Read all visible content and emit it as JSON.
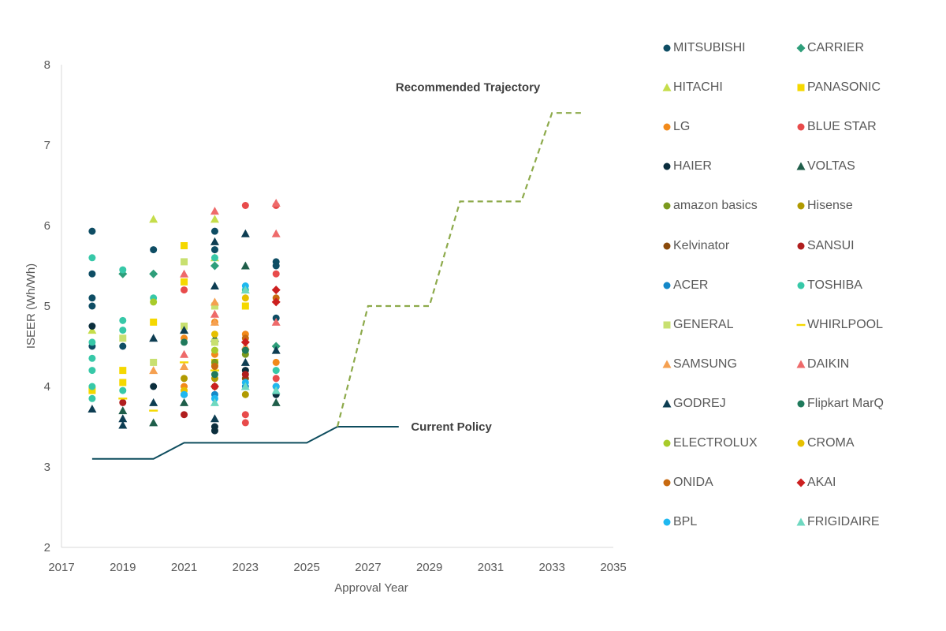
{
  "chart_data": {
    "type": "scatter",
    "title": "",
    "xlabel": "Approval Year",
    "ylabel": "ISEER (Wh/Wh)",
    "xlim": [
      2017,
      2035
    ],
    "ylim": [
      2,
      8
    ],
    "xticks": [
      "2017",
      "2019",
      "2021",
      "2023",
      "2025",
      "2027",
      "2029",
      "2031",
      "2033",
      "2035"
    ],
    "yticks": [
      "2",
      "3",
      "4",
      "5",
      "6",
      "7",
      "8"
    ],
    "grid": false,
    "legend_position": "right",
    "series": [
      {
        "name": "MITSUBISHI",
        "marker": "circle",
        "color": "#0E4D64",
        "points": [
          [
            2018,
            5.93
          ],
          [
            2018,
            5.4
          ],
          [
            2018,
            5.1
          ],
          [
            2018,
            5.0
          ],
          [
            2018,
            4.5
          ],
          [
            2019,
            4.5
          ],
          [
            2020,
            5.7
          ],
          [
            2022,
            5.93
          ],
          [
            2022,
            5.7
          ],
          [
            2024,
            5.55
          ],
          [
            2024,
            5.5
          ],
          [
            2024,
            4.85
          ]
        ]
      },
      {
        "name": "CARRIER",
        "marker": "diamond",
        "color": "#2E9E7A",
        "points": [
          [
            2019,
            5.4
          ],
          [
            2020,
            5.4
          ],
          [
            2022,
            5.5
          ],
          [
            2024,
            4.5
          ]
        ]
      },
      {
        "name": "HITACHI",
        "marker": "triangle",
        "color": "#C5DD4A",
        "points": [
          [
            2018,
            4.7
          ],
          [
            2020,
            6.08
          ],
          [
            2021,
            4.7
          ],
          [
            2022,
            6.08
          ],
          [
            2022,
            5.6
          ]
        ]
      },
      {
        "name": "PANASONIC",
        "marker": "square",
        "color": "#F5D800",
        "points": [
          [
            2018,
            3.95
          ],
          [
            2019,
            4.2
          ],
          [
            2019,
            4.05
          ],
          [
            2020,
            4.8
          ],
          [
            2021,
            5.75
          ],
          [
            2021,
            5.3
          ],
          [
            2022,
            4.3
          ],
          [
            2023,
            5.0
          ]
        ]
      },
      {
        "name": "LG",
        "marker": "circle",
        "color": "#F28A1A",
        "points": [
          [
            2021,
            4.6
          ],
          [
            2021,
            4.0
          ],
          [
            2022,
            4.8
          ],
          [
            2022,
            4.4
          ],
          [
            2023,
            4.65
          ],
          [
            2024,
            4.3
          ]
        ]
      },
      {
        "name": "BLUE STAR",
        "marker": "circle",
        "color": "#E84B4B",
        "points": [
          [
            2021,
            5.2
          ],
          [
            2023,
            6.25
          ],
          [
            2023,
            3.65
          ],
          [
            2023,
            3.55
          ],
          [
            2024,
            6.25
          ],
          [
            2024,
            5.4
          ],
          [
            2024,
            4.1
          ]
        ]
      },
      {
        "name": "HAIER",
        "marker": "circle",
        "color": "#0B2E3D",
        "points": [
          [
            2018,
            4.75
          ],
          [
            2020,
            4.0
          ],
          [
            2021,
            3.9
          ],
          [
            2022,
            3.45
          ],
          [
            2022,
            3.5
          ],
          [
            2023,
            4.2
          ],
          [
            2024,
            3.9
          ]
        ]
      },
      {
        "name": "VOLTAS",
        "marker": "triangle",
        "color": "#1F5E4A",
        "points": [
          [
            2019,
            3.7
          ],
          [
            2020,
            3.55
          ],
          [
            2021,
            3.8
          ],
          [
            2022,
            4.6
          ],
          [
            2023,
            5.5
          ],
          [
            2024,
            3.8
          ]
        ]
      },
      {
        "name": "amazon basics",
        "marker": "circle",
        "color": "#7B9A1E",
        "points": [
          [
            2022,
            4.3
          ],
          [
            2023,
            4.4
          ]
        ]
      },
      {
        "name": "Hisense",
        "marker": "circle",
        "color": "#B09A00",
        "points": [
          [
            2021,
            4.1
          ],
          [
            2022,
            4.1
          ],
          [
            2023,
            3.9
          ]
        ]
      },
      {
        "name": "Kelvinator",
        "marker": "circle",
        "color": "#8A4A0B",
        "points": [
          [
            2022,
            4.0
          ],
          [
            2023,
            4.1
          ]
        ]
      },
      {
        "name": "SANSUI",
        "marker": "circle",
        "color": "#B01E1E",
        "points": [
          [
            2019,
            3.8
          ],
          [
            2021,
            3.65
          ],
          [
            2023,
            4.15
          ],
          [
            2024,
            4.0
          ]
        ]
      },
      {
        "name": "ACER",
        "marker": "circle",
        "color": "#1488C8",
        "points": [
          [
            2022,
            3.9
          ],
          [
            2023,
            4.0
          ]
        ]
      },
      {
        "name": "TOSHIBA",
        "marker": "circle",
        "color": "#37C8A8",
        "points": [
          [
            2018,
            5.6
          ],
          [
            2018,
            4.55
          ],
          [
            2018,
            4.35
          ],
          [
            2018,
            4.2
          ],
          [
            2018,
            4.0
          ],
          [
            2018,
            3.85
          ],
          [
            2019,
            5.45
          ],
          [
            2019,
            4.82
          ],
          [
            2019,
            4.7
          ],
          [
            2019,
            3.95
          ],
          [
            2020,
            5.1
          ],
          [
            2022,
            5.6
          ],
          [
            2023,
            5.2
          ],
          [
            2024,
            4.2
          ]
        ]
      },
      {
        "name": "GENERAL",
        "marker": "square",
        "color": "#C8E070",
        "points": [
          [
            2019,
            4.6
          ],
          [
            2020,
            4.3
          ],
          [
            2021,
            5.55
          ],
          [
            2021,
            4.75
          ],
          [
            2022,
            5.0
          ],
          [
            2022,
            4.55
          ]
        ]
      },
      {
        "name": "WHIRLPOOL",
        "marker": "dash",
        "color": "#F5D800",
        "points": [
          [
            2019,
            3.85
          ],
          [
            2020,
            3.7
          ],
          [
            2021,
            4.3
          ],
          [
            2022,
            4.2
          ]
        ]
      },
      {
        "name": "SAMSUNG",
        "marker": "triangle",
        "color": "#F5A050",
        "points": [
          [
            2020,
            4.2
          ],
          [
            2021,
            4.25
          ],
          [
            2022,
            5.05
          ],
          [
            2022,
            4.8
          ],
          [
            2023,
            4.5
          ]
        ]
      },
      {
        "name": "DAIKIN",
        "marker": "triangle",
        "color": "#EE6A6A",
        "points": [
          [
            2021,
            5.4
          ],
          [
            2021,
            4.4
          ],
          [
            2022,
            6.18
          ],
          [
            2022,
            4.9
          ],
          [
            2024,
            6.28
          ],
          [
            2024,
            5.9
          ],
          [
            2024,
            4.8
          ]
        ]
      },
      {
        "name": "GODREJ",
        "marker": "triangle",
        "color": "#0D3D52",
        "points": [
          [
            2018,
            3.72
          ],
          [
            2019,
            3.6
          ],
          [
            2019,
            3.52
          ],
          [
            2020,
            3.8
          ],
          [
            2020,
            4.6
          ],
          [
            2021,
            4.7
          ],
          [
            2022,
            5.8
          ],
          [
            2022,
            5.25
          ],
          [
            2022,
            3.6
          ],
          [
            2023,
            5.9
          ],
          [
            2023,
            4.3
          ],
          [
            2024,
            4.45
          ]
        ]
      },
      {
        "name": "Flipkart MarQ",
        "marker": "circle",
        "color": "#1F7A5C",
        "points": [
          [
            2021,
            4.55
          ],
          [
            2022,
            4.15
          ],
          [
            2023,
            4.45
          ]
        ]
      },
      {
        "name": "ELECTROLUX",
        "marker": "circle",
        "color": "#A8CB2A",
        "points": [
          [
            2020,
            5.05
          ],
          [
            2022,
            4.45
          ]
        ]
      },
      {
        "name": "CROMA",
        "marker": "circle",
        "color": "#E6C000",
        "points": [
          [
            2021,
            3.95
          ],
          [
            2022,
            4.65
          ],
          [
            2023,
            5.1
          ]
        ]
      },
      {
        "name": "ONIDA",
        "marker": "circle",
        "color": "#C86A10",
        "points": [
          [
            2022,
            4.25
          ],
          [
            2023,
            4.6
          ],
          [
            2024,
            5.1
          ]
        ]
      },
      {
        "name": "AKAI",
        "marker": "diamond",
        "color": "#CC1F1F",
        "points": [
          [
            2022,
            4.0
          ],
          [
            2023,
            4.55
          ],
          [
            2024,
            5.2
          ],
          [
            2024,
            5.05
          ]
        ]
      },
      {
        "name": "BPL",
        "marker": "circle",
        "color": "#1EB8F0",
        "points": [
          [
            2021,
            3.9
          ],
          [
            2022,
            3.85
          ],
          [
            2023,
            5.25
          ],
          [
            2023,
            4.05
          ],
          [
            2024,
            4.0
          ]
        ]
      },
      {
        "name": "FRIGIDAIRE",
        "marker": "triangle",
        "color": "#6ED8C0",
        "points": [
          [
            2022,
            3.8
          ],
          [
            2023,
            5.2
          ],
          [
            2023,
            4.0
          ],
          [
            2024,
            3.95
          ]
        ]
      }
    ],
    "lines": [
      {
        "name": "Current Policy",
        "style": "solid",
        "color": "#0E4D5E",
        "points": [
          [
            2018,
            3.1
          ],
          [
            2020,
            3.1
          ],
          [
            2021,
            3.3
          ],
          [
            2025,
            3.3
          ],
          [
            2026,
            3.5
          ],
          [
            2028,
            3.5
          ]
        ]
      },
      {
        "name": "Recommended Trajectory",
        "style": "dashed",
        "color": "#8DAA4B",
        "points": [
          [
            2026,
            3.5
          ],
          [
            2027,
            5.0
          ],
          [
            2029,
            5.0
          ],
          [
            2030,
            6.3
          ],
          [
            2032,
            6.3
          ],
          [
            2033,
            7.4
          ],
          [
            2034,
            7.4
          ]
        ]
      }
    ],
    "annotations": [
      {
        "text": "Recommended Trajectory",
        "anchor": [
          2027.9,
          7.72
        ]
      },
      {
        "text": "Current Policy",
        "anchor": [
          2028.4,
          3.5
        ]
      }
    ]
  }
}
